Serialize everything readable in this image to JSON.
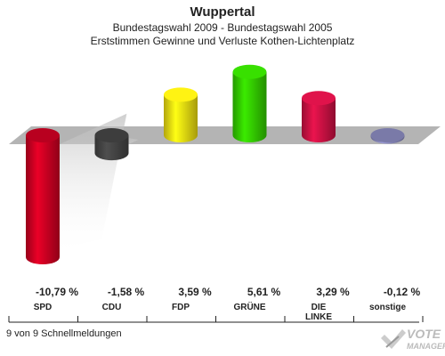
{
  "header": {
    "title": "Wuppertal",
    "subtitle1": "Bundestagswahl 2009 - Bundestagswahl 2005",
    "subtitle2": "Erststimmen Gewinne und Verluste Kothen-Lichtenplatz"
  },
  "footer": {
    "note": "9 von 9 Schnellmeldungen"
  },
  "logo": {
    "line1": "VOTE",
    "line2": "MANAGER"
  },
  "chart_data": {
    "type": "bar",
    "title": "Wuppertal",
    "categories": [
      "SPD",
      "CDU",
      "FDP",
      "GRÜNE",
      "DIE LINKE",
      "sonstige"
    ],
    "values": [
      -10.79,
      -1.58,
      3.59,
      5.61,
      3.29,
      -0.12
    ],
    "value_labels": [
      "-10,79 %",
      "-1,58 %",
      "3,59 %",
      "5,61 %",
      "3,29 %",
      "-0,12 %"
    ],
    "colors": [
      "#cc0022",
      "#444444",
      "#eedd11",
      "#33cc00",
      "#cc1144",
      "#8888bb"
    ],
    "ylim": [
      -11,
      6
    ],
    "grid": false,
    "legend": "none"
  }
}
